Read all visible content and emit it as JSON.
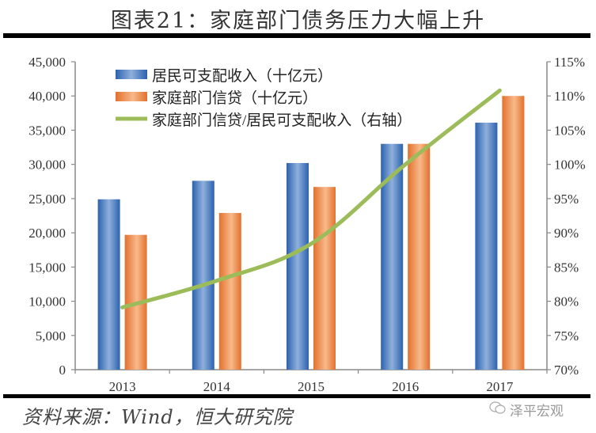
{
  "title": "图表21：家庭部门债务压力大幅上升",
  "source": "资料来源：Wind，恒大研究院",
  "watermark": "泽平宏观",
  "colors": {
    "income_bar": "#3a73c0",
    "credit_bar": "#ee8a4a",
    "ratio_line": "#9cbc5a"
  },
  "chart_data": {
    "type": "bar",
    "title": "家庭部门债务压力大幅上升",
    "categories": [
      "2013",
      "2014",
      "2015",
      "2016",
      "2017"
    ],
    "series": [
      {
        "name": "居民可支配收入（十亿元）",
        "type": "bar",
        "axis": "left",
        "values": [
          24900,
          27600,
          30200,
          33000,
          36100
        ]
      },
      {
        "name": "家庭部门信贷（十亿元）",
        "type": "bar",
        "axis": "left",
        "values": [
          19700,
          22900,
          26700,
          33000,
          40000
        ]
      },
      {
        "name": "家庭部门信贷/居民可支配收入（右轴）",
        "type": "line",
        "axis": "right",
        "values": [
          79.1,
          83.0,
          88.4,
          100.0,
          110.8
        ]
      }
    ],
    "y_left": {
      "ylim": [
        0,
        45000
      ],
      "ticks": [
        "0",
        "5,000",
        "10,000",
        "15,000",
        "20,000",
        "25,000",
        "30,000",
        "35,000",
        "40,000",
        "45,000"
      ]
    },
    "y_right": {
      "ylim": [
        70,
        115
      ],
      "ticks": [
        "70%",
        "75%",
        "80%",
        "85%",
        "90%",
        "95%",
        "100%",
        "105%",
        "110%",
        "115%"
      ]
    },
    "xlabel": "",
    "ylabel": "",
    "grid": false,
    "legend_position": "top-left inside"
  }
}
